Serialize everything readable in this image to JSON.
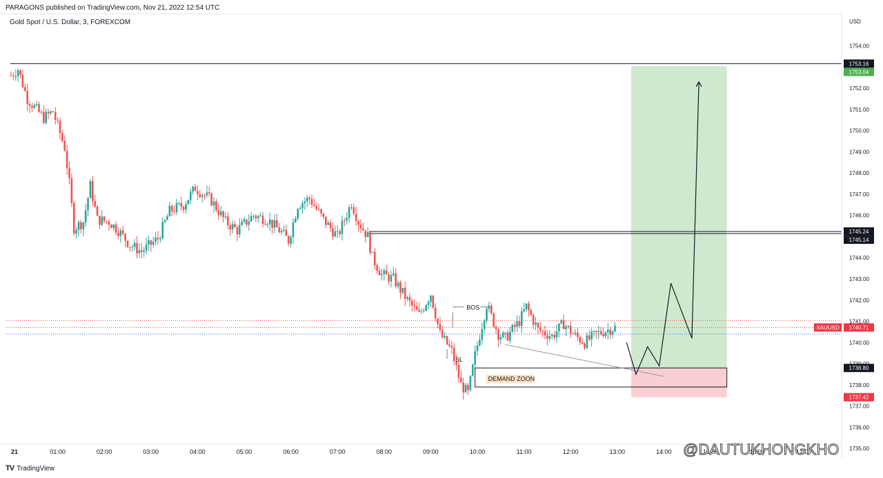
{
  "header": {
    "published": "PARAGONS published on TradingView.com, Nov 21, 2022 12:54 UTC"
  },
  "symbol_line": "Gold Spot / U.S. Dollar, 3, FOREXCOM",
  "footer": {
    "logo": "TV",
    "brand": "TradingView"
  },
  "watermark": "@DAUTUKHONGKHO",
  "colors": {
    "up": "#26a69a",
    "down": "#ef5350",
    "target_zone": "#cfe9cf",
    "stop_zone": "#f9cfd3",
    "axis_text": "#131722"
  },
  "chart_data": {
    "type": "candlestick",
    "currency": "USD",
    "ylim": [
      1735.2,
      1754.7
    ],
    "y_ticks": [
      "1754.00",
      "1753.00",
      "1752.00",
      "1751.00",
      "1750.00",
      "1749.00",
      "1748.00",
      "1747.00",
      "1746.00",
      "1744.00",
      "1743.00",
      "1742.00",
      "1741.00",
      "1740.00",
      "1739.00",
      "1738.00",
      "1737.00",
      "1736.00",
      "1735.00"
    ],
    "x_ticks": [
      {
        "label": "21",
        "t": 0.0
      },
      {
        "label": "01:00",
        "t": 1.0
      },
      {
        "label": "02:00",
        "t": 2.0
      },
      {
        "label": "03:00",
        "t": 3.0
      },
      {
        "label": "04:00",
        "t": 4.0
      },
      {
        "label": "05:00",
        "t": 5.0
      },
      {
        "label": "06:00",
        "t": 6.0
      },
      {
        "label": "07:00",
        "t": 7.0
      },
      {
        "label": "08:00",
        "t": 8.0
      },
      {
        "label": "09:00",
        "t": 9.0
      },
      {
        "label": "10:00",
        "t": 10.0
      },
      {
        "label": "11:00",
        "t": 11.0
      },
      {
        "label": "12:00",
        "t": 12.0
      },
      {
        "label": "13:00",
        "t": 13.0
      },
      {
        "label": "14:00",
        "t": 14.0
      },
      {
        "label": "15:00",
        "t": 15.0
      },
      {
        "label": "16:00",
        "t": 16.0
      },
      {
        "label": "17:00",
        "t": 17.0
      }
    ],
    "close_path": [
      [
        0.0,
        1752.6
      ],
      [
        0.15,
        1752.9
      ],
      [
        0.35,
        1751.5
      ],
      [
        0.7,
        1750.6
      ],
      [
        0.9,
        1750.9
      ],
      [
        1.15,
        1749.2
      ],
      [
        1.25,
        1747.5
      ],
      [
        1.35,
        1745.4
      ],
      [
        1.55,
        1745.7
      ],
      [
        1.7,
        1747.4
      ],
      [
        1.85,
        1745.8
      ],
      [
        2.1,
        1745.7
      ],
      [
        2.3,
        1745.3
      ],
      [
        2.55,
        1744.6
      ],
      [
        2.8,
        1744.3
      ],
      [
        3.15,
        1744.9
      ],
      [
        3.4,
        1746.2
      ],
      [
        3.7,
        1746.5
      ],
      [
        3.95,
        1747.3
      ],
      [
        4.3,
        1746.7
      ],
      [
        4.6,
        1745.7
      ],
      [
        4.85,
        1745.3
      ],
      [
        5.2,
        1746.0
      ],
      [
        5.5,
        1745.8
      ],
      [
        5.8,
        1745.2
      ],
      [
        5.95,
        1744.8
      ],
      [
        6.15,
        1746.5
      ],
      [
        6.4,
        1746.8
      ],
      [
        6.7,
        1745.8
      ],
      [
        7.0,
        1745.0
      ],
      [
        7.3,
        1746.6
      ],
      [
        7.45,
        1745.7
      ],
      [
        7.65,
        1745.0
      ],
      [
        7.75,
        1744.0
      ],
      [
        7.95,
        1743.2
      ],
      [
        8.2,
        1743.0
      ],
      [
        8.5,
        1742.0
      ],
      [
        8.75,
        1741.3
      ],
      [
        9.0,
        1742.3
      ],
      [
        9.2,
        1740.4
      ],
      [
        9.45,
        1739.6
      ],
      [
        9.65,
        1738.0
      ],
      [
        9.8,
        1737.6
      ],
      [
        9.95,
        1739.4
      ],
      [
        10.2,
        1741.8
      ],
      [
        10.45,
        1740.4
      ],
      [
        10.6,
        1740.2
      ],
      [
        10.9,
        1741.0
      ],
      [
        11.05,
        1741.7
      ],
      [
        11.3,
        1740.6
      ],
      [
        11.6,
        1740.3
      ],
      [
        11.85,
        1740.9
      ],
      [
        12.05,
        1740.4
      ],
      [
        12.3,
        1740.0
      ],
      [
        12.55,
        1740.4
      ],
      [
        12.8,
        1740.6
      ],
      [
        12.95,
        1740.7
      ]
    ],
    "levels": {
      "top_line": 1753.16,
      "bos_high_line": 1745.24,
      "bos_low_line": 1745.14,
      "current_price": 1740.71,
      "red_dotted": 1741.03,
      "blue_dotted": 1740.4
    },
    "price_labels": [
      {
        "value": "1753.16",
        "price": 1753.16,
        "bg": "#131722",
        "fg": "#ffffff"
      },
      {
        "value": "1753.04",
        "price": 1753.04,
        "bg": "#4caf50",
        "fg": "#ffffff"
      },
      {
        "value": "1745.24",
        "price": 1745.24,
        "bg": "#131722",
        "fg": "#ffffff"
      },
      {
        "value": "1745.14",
        "price": 1745.14,
        "bg": "#131722",
        "fg": "#ffffff"
      },
      {
        "value": "1740.71",
        "price": 1740.71,
        "bg": "#f23645",
        "fg": "#ffffff"
      },
      {
        "value": "1738.80",
        "price": 1738.8,
        "bg": "#131722",
        "fg": "#ffffff"
      },
      {
        "value": "1737.42",
        "price": 1737.42,
        "bg": "#f23645",
        "fg": "#ffffff"
      }
    ],
    "symbol_tag": "XAUUSD",
    "position": {
      "entry": 1738.8,
      "target": 1753.04,
      "stop": 1737.42,
      "t_start": 13.3,
      "t_end": 15.35
    },
    "demand_zone": {
      "label": "DEMAND ZOON",
      "top": 1738.8,
      "bottom": 1737.9,
      "t_start": 9.95,
      "t_end": 15.35
    },
    "annotations": [
      {
        "label": "BOS",
        "t": 9.5,
        "price": 1741.55
      },
      {
        "label": "SL",
        "t": 9.35,
        "price": 1739.1
      }
    ],
    "trendline": [
      [
        10.6,
        1739.9
      ],
      [
        14.0,
        1738.4
      ]
    ],
    "projection": [
      [
        13.2,
        1740.0
      ],
      [
        13.4,
        1738.5
      ],
      [
        13.65,
        1739.8
      ],
      [
        13.9,
        1738.9
      ],
      [
        14.15,
        1742.8
      ],
      [
        14.6,
        1740.2
      ],
      [
        14.75,
        1752.3
      ]
    ]
  }
}
